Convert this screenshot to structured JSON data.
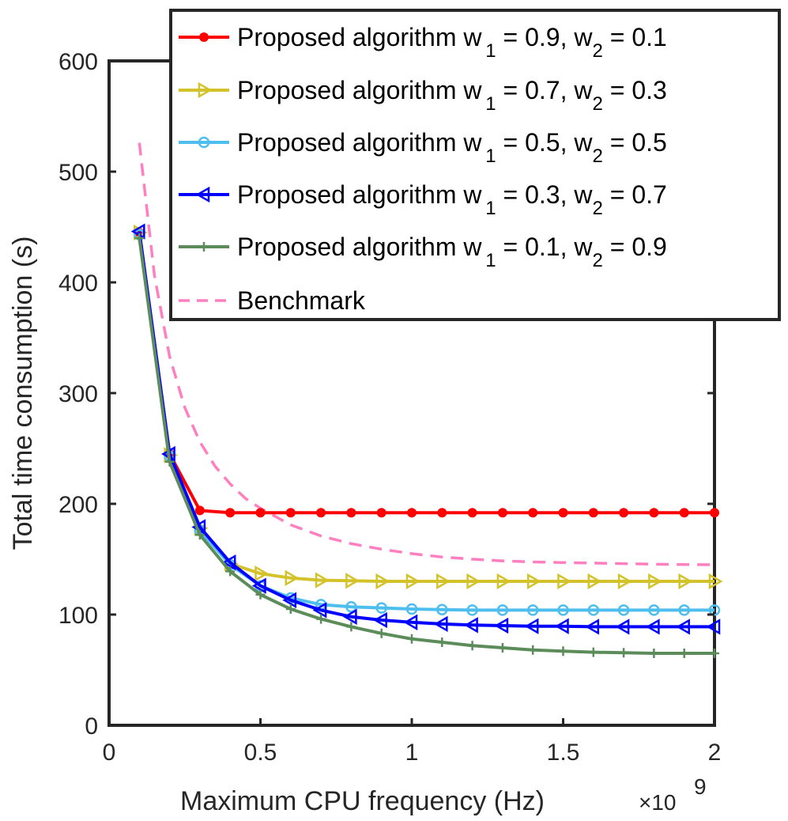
{
  "chart_data": {
    "type": "line",
    "xlabel": "Maximum CPU frequency (Hz)",
    "x_multiplier": {
      "base": "×10",
      "exponent": "9"
    },
    "ylabel": "Total time consumption (s)",
    "xlim": [
      0,
      2
    ],
    "ylim": [
      0,
      600
    ],
    "x_ticks": [
      0,
      0.5,
      1,
      1.5,
      2
    ],
    "x_tick_labels": [
      "0",
      "0.5",
      "1",
      "1.5",
      "2"
    ],
    "y_ticks": [
      0,
      100,
      200,
      300,
      400,
      500,
      600
    ],
    "y_tick_labels": [
      "0",
      "100",
      "200",
      "300",
      "400",
      "500",
      "600"
    ],
    "grid": false,
    "legend_position": "top-right",
    "x": [
      0.1,
      0.2,
      0.3,
      0.4,
      0.5,
      0.6,
      0.7,
      0.8,
      0.9,
      1.0,
      1.1,
      1.2,
      1.3,
      1.4,
      1.5,
      1.6,
      1.7,
      1.8,
      1.9,
      2.0
    ],
    "series": [
      {
        "legend": {
          "main": "Proposed algorithm w",
          "sub1": "1",
          "mid": " = 0.9, w",
          "sub2": "2",
          "end": " = 0.1"
        },
        "color": "#ff0000",
        "marker": "dot",
        "values": [
          445,
          245,
          194,
          192,
          192,
          192,
          192,
          192,
          192,
          192,
          192,
          192,
          192,
          192,
          192,
          192,
          192,
          192,
          192,
          192
        ]
      },
      {
        "legend": {
          "main": "Proposed algorithm w",
          "sub1": "1",
          "mid": " = 0.7, w",
          "sub2": "2",
          "end": " = 0.3"
        },
        "color": "#d4c22a",
        "marker": "triangle-right",
        "values": [
          445,
          244,
          178,
          146,
          137,
          133,
          131,
          130.5,
          130,
          130,
          130,
          130,
          130,
          130,
          130,
          130,
          130,
          130,
          130,
          130
        ]
      },
      {
        "legend": {
          "main": "Proposed algorithm w",
          "sub1": "1",
          "mid": " = 0.5, w",
          "sub2": "2",
          "end": " = 0.5"
        },
        "color": "#4dbeee",
        "marker": "circle",
        "values": [
          443,
          243,
          176,
          145,
          126,
          115,
          109,
          107,
          106,
          105,
          104.5,
          104,
          104,
          104,
          104,
          104,
          104,
          104,
          104,
          104
        ]
      },
      {
        "legend": {
          "main": "Proposed algorithm w",
          "sub1": "1",
          "mid": " = 0.3, w",
          "sub2": "2",
          "end": " = 0.7"
        },
        "color": "#0000ff",
        "marker": "triangle-left",
        "values": [
          446,
          245,
          179,
          147,
          126,
          113,
          104,
          98,
          95,
          93,
          91.5,
          90.5,
          90,
          89.5,
          89.5,
          89,
          89,
          89,
          89,
          89
        ]
      },
      {
        "legend": {
          "main": "Proposed algorithm w",
          "sub1": "1",
          "mid": " = 0.1, w",
          "sub2": "2",
          "end": " = 0.9"
        },
        "color": "#5b8c5a",
        "marker": "plus",
        "values": [
          440,
          238,
          172,
          139,
          118,
          105,
          96,
          89,
          83,
          78,
          75,
          72,
          70,
          68,
          67,
          66,
          65.5,
          65,
          65,
          65
        ]
      },
      {
        "legend": {
          "main": "Benchmark",
          "sub1": "",
          "mid": "",
          "sub2": "",
          "end": ""
        },
        "color": "#ff7fbf",
        "marker": "none",
        "dashed": true,
        "x": [
          0.1,
          0.15,
          0.2,
          0.25,
          0.3,
          0.35,
          0.4,
          0.45,
          0.5,
          0.6,
          0.7,
          0.8,
          0.9,
          1.0,
          1.1,
          1.2,
          1.3,
          1.4,
          1.5,
          1.6,
          1.7,
          1.8,
          1.9,
          2.0
        ],
        "values": [
          526,
          406,
          333,
          287,
          256,
          234,
          218,
          205,
          196,
          181,
          171,
          164,
          159,
          155,
          152,
          150,
          148.5,
          147.5,
          147,
          146.5,
          146,
          145.5,
          145.2,
          145
        ]
      }
    ]
  }
}
